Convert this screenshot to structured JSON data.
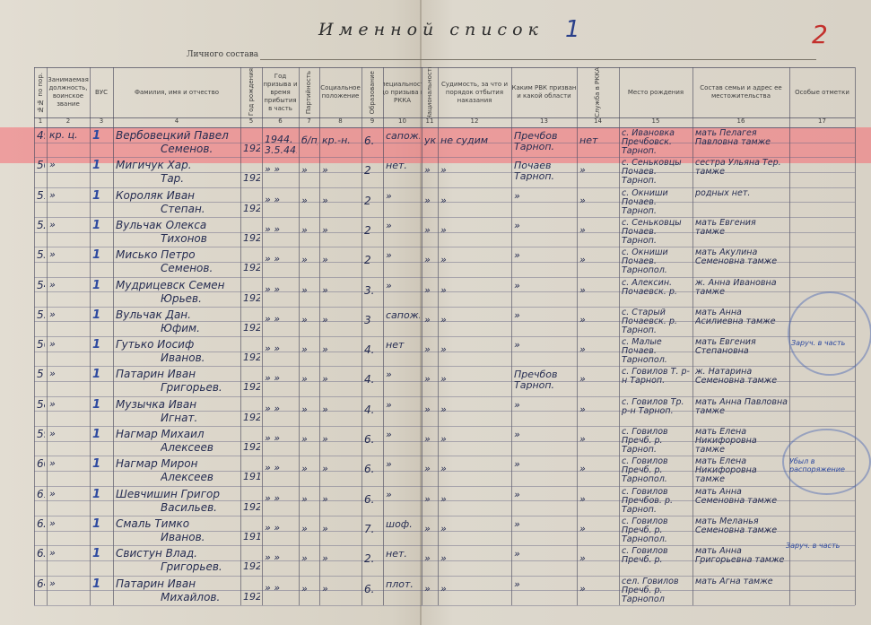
{
  "document": {
    "title": "Именной список",
    "subtitle": "Личного состава",
    "sheet_mark": "1",
    "page_number": "2"
  },
  "headers": [
    {
      "num": "1",
      "label": "№№ по пор."
    },
    {
      "num": "2",
      "label": "Занимаемая должность, воинское звание"
    },
    {
      "num": "3",
      "label": "ВУС"
    },
    {
      "num": "4",
      "label": "Фамилия, имя и отчество"
    },
    {
      "num": "5",
      "label": "Год рождения"
    },
    {
      "num": "6",
      "label": "Год призыва и время прибытия в часть"
    },
    {
      "num": "7",
      "label": "Партийность"
    },
    {
      "num": "8",
      "label": "Социальное положение"
    },
    {
      "num": "9",
      "label": "Образование"
    },
    {
      "num": "10",
      "label": "Специальность до призыва в РККА"
    },
    {
      "num": "11",
      "label": "Национальность"
    },
    {
      "num": "12",
      "label": "Судимость, за что и порядок отбытия наказания"
    },
    {
      "num": "13",
      "label": "Каким РВК призван и какой области"
    },
    {
      "num": "14",
      "label": "Служба в РККА"
    },
    {
      "num": "15",
      "label": "Место рождения"
    },
    {
      "num": "16",
      "label": "Состав семьи и адрес ее местожительства"
    },
    {
      "num": "17",
      "label": "Особые отметки"
    }
  ],
  "rows": [
    {
      "no": "49.",
      "rank": "кр. ц.",
      "vus": "1",
      "name1": "Вербовецкий Павел",
      "name2": "Семенов.",
      "year": "1924.",
      "call": "1944. 3.5.44.",
      "party": "б/пр",
      "social": "кр.-н.",
      "edu": "6.",
      "spec": "сапож.",
      "nat": "укр.",
      "court": "не судим",
      "rvk": "Пречбов Тарноп.",
      "service": "нет",
      "birth": "с. Ивановка Пречбовск. Тарноп.",
      "family": "мать Пелагея Павловна тамже"
    },
    {
      "no": "50.",
      "rank": "»",
      "vus": "1",
      "name1": "Мигичук Хар.",
      "name2": "Тар.",
      "year": "1922.",
      "call": "» »",
      "party": "»",
      "social": "»",
      "edu": "2",
      "spec": "нет.",
      "nat": "»",
      "court": "»",
      "rvk": "Почаев Тарноп.",
      "service": "»",
      "birth": "с. Сеньковцы Почаев. Тарноп.",
      "family": "сестра Ульяна Тер. тамже"
    },
    {
      "no": "51.",
      "rank": "»",
      "vus": "1",
      "name1": "Короляк Иван",
      "name2": "Степан.",
      "year": "1922.",
      "call": "» »",
      "party": "»",
      "social": "»",
      "edu": "2",
      "spec": "»",
      "nat": "»",
      "court": "»",
      "rvk": "»",
      "service": "»",
      "birth": "с. Окниши Почаев. Тарноп.",
      "family": "родных нет."
    },
    {
      "no": "52.",
      "rank": "»",
      "vus": "1",
      "name1": "Вульчак Олекса",
      "name2": "Тихонов",
      "year": "1922.",
      "call": "» »",
      "party": "»",
      "social": "»",
      "edu": "2",
      "spec": "»",
      "nat": "»",
      "court": "»",
      "rvk": "»",
      "service": "»",
      "birth": "с. Сеньковцы Почаев. Тарноп.",
      "family": "мать Евгения тамже"
    },
    {
      "no": "53.",
      "rank": "»",
      "vus": "1",
      "name1": "Мисько Петро",
      "name2": "Семенов.",
      "year": "1924.",
      "call": "» »",
      "party": "»",
      "social": "»",
      "edu": "2",
      "spec": "»",
      "nat": "»",
      "court": "»",
      "rvk": "»",
      "service": "»",
      "birth": "с. Окниши Почаев. Тарнопол.",
      "family": "мать Акулина Семеновна тамже"
    },
    {
      "no": "54.",
      "rank": "»",
      "vus": "1",
      "name1": "Мудрицевск Семен",
      "name2": "Юрьев.",
      "year": "1921.",
      "call": "» »",
      "party": "»",
      "social": "»",
      "edu": "3.",
      "spec": "»",
      "nat": "»",
      "court": "»",
      "rvk": "»",
      "service": "»",
      "birth": "с. Алексин. Почаевск. р.",
      "family": "ж. Анна Ивановна тамже"
    },
    {
      "no": "55.",
      "rank": "»",
      "vus": "1",
      "name1": "Вульчак Дан.",
      "name2": "Юфим.",
      "year": "1923.",
      "call": "» »",
      "party": "»",
      "social": "»",
      "edu": "3",
      "spec": "сапож.",
      "nat": "»",
      "court": "»",
      "rvk": "»",
      "service": "»",
      "birth": "с. Старый Почаевск. р. Тарноп.",
      "family": "мать Анна Асилиевна тамже"
    },
    {
      "no": "56",
      "rank": "»",
      "vus": "1",
      "name1": "Гутько Иосиф",
      "name2": "Иванов.",
      "year": "1925.",
      "call": "» »",
      "party": "»",
      "social": "»",
      "edu": "4.",
      "spec": "нет",
      "nat": "»",
      "court": "»",
      "rvk": "»",
      "service": "»",
      "birth": "с. Малые Почаев. Тарнопол.",
      "family": "мать Евгения Степановна"
    },
    {
      "no": "57.",
      "rank": "»",
      "vus": "1",
      "name1": "Патарин Иван",
      "name2": "Григорьев.",
      "year": "1922.",
      "call": "» »",
      "party": "»",
      "social": "»",
      "edu": "4.",
      "spec": "»",
      "nat": "»",
      "court": "»",
      "rvk": "Пречбов Тарноп.",
      "service": "»",
      "birth": "с. Говилов Т. р-н Тарноп.",
      "family": "ж. Натарина Семеновна тамже"
    },
    {
      "no": "58.",
      "rank": "»",
      "vus": "1",
      "name1": "Музычка Иван",
      "name2": "Игнат.",
      "year": "1922.",
      "call": "» »",
      "party": "»",
      "social": "»",
      "edu": "4.",
      "spec": "»",
      "nat": "»",
      "court": "»",
      "rvk": "»",
      "service": "»",
      "birth": "с. Говилов Тр. р-н Тарноп.",
      "family": "мать Анна Павловна тамже"
    },
    {
      "no": "59.",
      "rank": "»",
      "vus": "1",
      "name1": "Нагмар Михаил",
      "name2": "Алексеев",
      "year": "1921.",
      "call": "» »",
      "party": "»",
      "social": "»",
      "edu": "6.",
      "spec": "»",
      "nat": "»",
      "court": "»",
      "rvk": "»",
      "service": "»",
      "birth": "с. Говилов Пречб. р. Тарноп.",
      "family": "мать Елена Никифоровна тамже"
    },
    {
      "no": "60.",
      "rank": "»",
      "vus": "1",
      "name1": "Нагмар Мирон",
      "name2": "Алексеев",
      "year": "1913.",
      "call": "» »",
      "party": "»",
      "social": "»",
      "edu": "6.",
      "spec": "»",
      "nat": "»",
      "court": "»",
      "rvk": "»",
      "service": "»",
      "birth": "с. Говилов Пречб. р. Тарнопол.",
      "family": "мать Елена Никифоровна тамже"
    },
    {
      "no": "61.",
      "rank": "»",
      "vus": "1",
      "name1": "Шевчишин Григор",
      "name2": "Васильев.",
      "year": "1922.",
      "call": "» »",
      "party": "»",
      "social": "»",
      "edu": "6.",
      "spec": "»",
      "nat": "»",
      "court": "»",
      "rvk": "»",
      "service": "»",
      "birth": "с. Говилов Пречбов. р. Тарноп.",
      "family": "мать Анна Семеновна тамже"
    },
    {
      "no": "62.",
      "rank": "»",
      "vus": "1",
      "name1": "Смаль Тимко",
      "name2": "Иванов.",
      "year": "1918.",
      "call": "» »",
      "party": "»",
      "social": "»",
      "edu": "7.",
      "spec": "шоф.",
      "nat": "»",
      "court": "»",
      "rvk": "»",
      "service": "»",
      "birth": "с. Говилов Пречб. р. Тарнопол.",
      "family": "мать Меланья Семеновна тамже"
    },
    {
      "no": "63.",
      "rank": "»",
      "vus": "1",
      "name1": "Свистун Влад.",
      "name2": "Григорьев.",
      "year": "1924.",
      "call": "» »",
      "party": "»",
      "social": "»",
      "edu": "2.",
      "spec": "нет.",
      "nat": "»",
      "court": "»",
      "rvk": "»",
      "service": "»",
      "birth": "с. Говилов Пречб. р.",
      "family": "мать Анна Григорьевна тамже"
    },
    {
      "no": "64.",
      "rank": "»",
      "vus": "1",
      "name1": "Патарин Иван",
      "name2": "Михайлов.",
      "year": "1922.",
      "call": "» »",
      "party": "»",
      "social": "»",
      "edu": "6.",
      "spec": "плот.",
      "nat": "»",
      "court": "»",
      "rvk": "»",
      "service": "»",
      "birth": "сел. Говилов Пречб. р. Тарнопол",
      "family": "мать Агна тамже"
    }
  ],
  "margin_notes": {
    "note_56": "Заруч. в часть",
    "note_60": "Убыл в распоряжение",
    "note_63": "Заруч. в часть"
  },
  "colors": {
    "paper": "#d9d3c7",
    "highlight": "#f5697380",
    "ink": "#262d52",
    "red_ink": "#c3302c",
    "blue_pencil": "#2e4aa0"
  }
}
